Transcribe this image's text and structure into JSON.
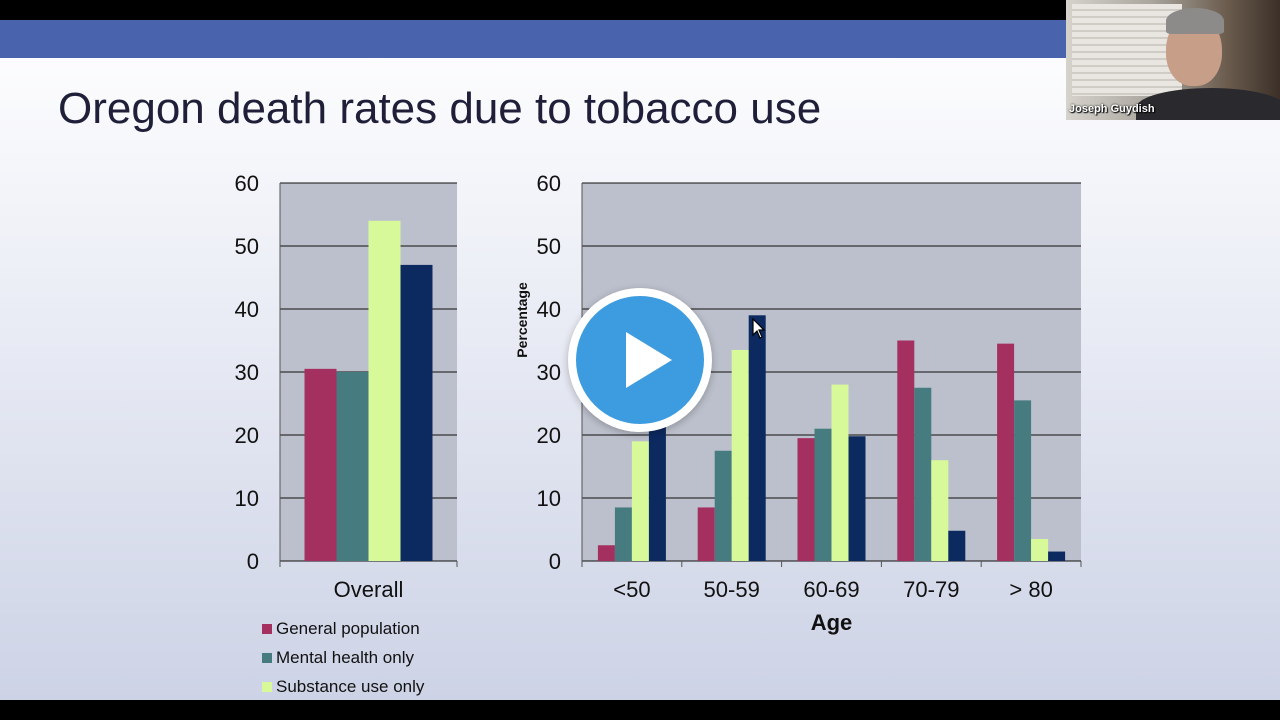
{
  "slide": {
    "title": "Oregon death rates due to tobacco use"
  },
  "colors": {
    "banner": "#4a63ad",
    "plot_bg": "#bcc0cc",
    "gridline": "#111111",
    "series": [
      "#a3305f",
      "#467c80",
      "#d8f99a",
      "#0c2a5f"
    ]
  },
  "chart_data": [
    {
      "type": "bar",
      "categories": [
        "Overall"
      ],
      "series": [
        {
          "name": "General population",
          "values": [
            30.5
          ]
        },
        {
          "name": "Mental health only",
          "values": [
            30
          ]
        },
        {
          "name": "Substance use only",
          "values": [
            54
          ]
        },
        {
          "name": "",
          "values": [
            47
          ]
        }
      ],
      "ylim": [
        0,
        60
      ],
      "yticks": [
        "0",
        "10",
        "20",
        "30",
        "40",
        "50",
        "60"
      ],
      "grid": true,
      "legend": "bottom-left"
    },
    {
      "type": "bar",
      "categories": [
        "<50",
        "50-59",
        "60-69",
        "70-79",
        "> 80"
      ],
      "series": [
        {
          "name": "General population",
          "values": [
            2.5,
            8.5,
            19.5,
            35,
            34.5
          ]
        },
        {
          "name": "Mental health only",
          "values": [
            8.5,
            17.5,
            21,
            27.5,
            25.5
          ]
        },
        {
          "name": "Substance use only",
          "values": [
            19,
            33.5,
            28,
            16,
            3.5
          ]
        },
        {
          "name": "",
          "values": [
            21.5,
            39,
            19.8,
            4.8,
            1.5
          ]
        }
      ],
      "xlabel": "Age",
      "ylabel": "Percentage",
      "ylim": [
        0,
        60
      ],
      "yticks": [
        "0",
        "10",
        "20",
        "30",
        "40",
        "50",
        "60"
      ],
      "grid": true
    }
  ],
  "legend": {
    "items": [
      {
        "label": "General population",
        "color": "#a3305f"
      },
      {
        "label": "Mental health only",
        "color": "#467c80"
      },
      {
        "label": "Substance use only",
        "color": "#d8f99a"
      }
    ]
  },
  "webcam": {
    "participant_name": "Joseph Guydish"
  },
  "video": {
    "play_icon": "play-icon",
    "cursor_icon": "arrow-cursor-icon"
  }
}
